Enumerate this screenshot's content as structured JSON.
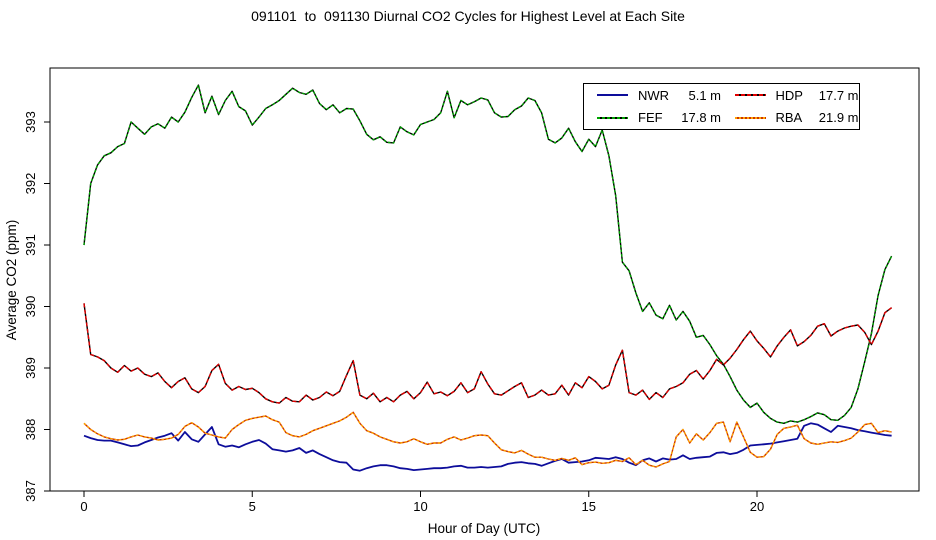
{
  "title": "091101  to  091130 Diurnal CO2 Cycles for Highest Level at Each Site",
  "chart_data": {
    "type": "line",
    "title": "091101  to  091130 Diurnal CO2 Cycles for Highest Level at Each Site",
    "xlabel": "Hour of Day (UTC)",
    "ylabel": "Average CO2 (ppm)",
    "x_ticks": [
      0,
      5,
      10,
      15,
      20
    ],
    "y_ticks": [
      387,
      388,
      389,
      390,
      391,
      392,
      393
    ],
    "xlim": [
      0,
      24
    ],
    "ylim": [
      387,
      393.9
    ],
    "grid": false,
    "legend_position": "top-right",
    "x_start": 0,
    "x_step": 0.2,
    "series": [
      {
        "name": "NWR",
        "label": "NWR",
        "height_label": "5.1 m",
        "color": "#0d0d9b",
        "base_color": "",
        "dash": "",
        "values": [
          387.9,
          387.86,
          387.83,
          387.82,
          387.82,
          387.79,
          387.76,
          387.73,
          387.74,
          387.79,
          387.83,
          387.87,
          387.9,
          387.94,
          387.82,
          387.96,
          387.84,
          387.8,
          387.92,
          388.04,
          387.76,
          387.72,
          387.74,
          387.71,
          387.76,
          387.8,
          387.83,
          387.77,
          387.68,
          387.66,
          387.64,
          387.66,
          387.7,
          387.62,
          387.66,
          387.6,
          387.55,
          387.5,
          387.47,
          387.46,
          387.35,
          387.33,
          387.37,
          387.4,
          387.42,
          387.42,
          387.4,
          387.37,
          387.36,
          387.34,
          387.35,
          387.36,
          387.37,
          387.37,
          387.38,
          387.4,
          387.41,
          387.38,
          387.38,
          387.39,
          387.38,
          387.39,
          387.4,
          387.44,
          387.46,
          387.47,
          387.45,
          387.44,
          387.41,
          387.45,
          387.49,
          387.52,
          387.46,
          387.47,
          387.48,
          387.5,
          387.54,
          387.53,
          387.52,
          387.55,
          387.52,
          387.46,
          387.42,
          387.5,
          387.53,
          387.48,
          387.53,
          387.51,
          387.52,
          387.58,
          387.52,
          387.54,
          387.55,
          387.56,
          387.62,
          387.63,
          387.6,
          387.62,
          387.67,
          387.74,
          387.75,
          387.76,
          387.77,
          387.79,
          387.81,
          387.83,
          387.85,
          388.06,
          388.1,
          388.08,
          388.02,
          387.96,
          388.06,
          388.04,
          388.02,
          387.99,
          387.97,
          387.95,
          387.93,
          387.91,
          387.9
        ]
      },
      {
        "name": "FEF",
        "label": "FEF",
        "height_label": "17.8 m",
        "color": "#00a300",
        "base_color": "#000000",
        "dash": "2.6,2",
        "values": [
          391.0,
          392.0,
          392.3,
          392.45,
          392.5,
          392.6,
          392.65,
          393.0,
          392.9,
          392.8,
          392.92,
          392.97,
          392.9,
          393.08,
          393.0,
          393.16,
          393.4,
          393.6,
          393.15,
          393.42,
          393.12,
          393.35,
          393.5,
          393.25,
          393.18,
          392.95,
          393.08,
          393.22,
          393.28,
          393.35,
          393.45,
          393.55,
          393.48,
          393.45,
          393.52,
          393.3,
          393.2,
          393.28,
          393.15,
          393.22,
          393.21,
          393.02,
          392.8,
          392.71,
          392.76,
          392.67,
          392.66,
          392.92,
          392.84,
          392.79,
          392.96,
          393.0,
          393.04,
          393.15,
          393.5,
          393.07,
          393.35,
          393.28,
          393.33,
          393.39,
          393.36,
          393.15,
          393.08,
          393.09,
          393.2,
          393.26,
          393.39,
          393.35,
          393.15,
          392.72,
          392.66,
          392.74,
          392.9,
          392.68,
          392.52,
          392.72,
          392.6,
          392.87,
          392.45,
          391.8,
          390.72,
          390.58,
          390.22,
          389.92,
          390.06,
          389.86,
          389.8,
          390.02,
          389.78,
          389.92,
          389.76,
          389.5,
          389.53,
          389.38,
          389.2,
          389.06,
          388.86,
          388.64,
          388.48,
          388.36,
          388.43,
          388.28,
          388.18,
          388.12,
          388.1,
          388.14,
          388.12,
          388.16,
          388.21,
          388.27,
          388.24,
          388.16,
          388.15,
          388.23,
          388.36,
          388.66,
          389.1,
          389.56,
          390.18,
          390.6,
          390.82
        ]
      },
      {
        "name": "HDP",
        "label": "HDP",
        "height_label": "17.7 m",
        "color": "#e00000",
        "base_color": "#000000",
        "dash": "4,2.4",
        "values": [
          390.05,
          389.22,
          389.18,
          389.12,
          389.0,
          388.93,
          389.04,
          388.95,
          389.0,
          388.9,
          388.86,
          388.92,
          388.78,
          388.68,
          388.78,
          388.84,
          388.66,
          388.6,
          388.7,
          388.96,
          389.06,
          388.75,
          388.64,
          388.7,
          388.65,
          388.67,
          388.6,
          388.5,
          388.45,
          388.43,
          388.52,
          388.46,
          388.45,
          388.56,
          388.48,
          388.52,
          388.61,
          388.55,
          388.62,
          388.88,
          389.12,
          388.56,
          388.5,
          388.59,
          388.45,
          388.52,
          388.45,
          388.56,
          388.62,
          388.5,
          388.6,
          388.77,
          388.58,
          388.61,
          388.55,
          388.62,
          388.76,
          388.6,
          388.66,
          388.94,
          388.74,
          388.58,
          388.56,
          388.63,
          388.7,
          388.76,
          388.52,
          388.56,
          388.64,
          388.56,
          388.58,
          388.72,
          388.56,
          388.76,
          388.68,
          388.86,
          388.78,
          388.66,
          388.72,
          389.05,
          389.29,
          388.6,
          388.56,
          388.64,
          388.49,
          388.6,
          388.52,
          388.66,
          388.7,
          388.76,
          388.9,
          388.96,
          388.82,
          388.96,
          389.14,
          389.05,
          389.16,
          389.3,
          389.46,
          389.6,
          389.44,
          389.32,
          389.18,
          389.36,
          389.5,
          389.62,
          389.36,
          389.43,
          389.53,
          389.68,
          389.72,
          389.52,
          389.6,
          389.65,
          389.68,
          389.7,
          389.58,
          389.38,
          389.6,
          389.9,
          389.98
        ]
      },
      {
        "name": "RBA",
        "label": "RBA",
        "height_label": "21.9 m",
        "color": "#ffa500",
        "base_color": "#cc3300",
        "dash": "2.4,2",
        "values": [
          388.1,
          388.0,
          387.93,
          387.88,
          387.85,
          387.83,
          387.84,
          387.88,
          387.91,
          387.88,
          387.86,
          387.83,
          387.84,
          387.86,
          387.92,
          388.05,
          388.11,
          388.04,
          387.94,
          387.91,
          387.88,
          387.86,
          388.0,
          388.08,
          388.15,
          388.18,
          388.2,
          388.22,
          388.16,
          388.12,
          387.95,
          387.9,
          387.88,
          387.92,
          387.98,
          388.02,
          388.06,
          388.1,
          388.14,
          388.2,
          388.28,
          388.1,
          387.98,
          387.94,
          387.88,
          387.84,
          387.8,
          387.78,
          387.8,
          387.85,
          387.8,
          387.76,
          387.78,
          387.78,
          387.84,
          387.88,
          387.83,
          387.86,
          387.9,
          387.91,
          387.9,
          387.78,
          387.67,
          387.64,
          387.62,
          387.66,
          387.6,
          387.55,
          387.55,
          387.52,
          387.5,
          387.53,
          387.5,
          387.54,
          387.43,
          387.46,
          387.47,
          387.45,
          387.46,
          387.5,
          387.48,
          387.54,
          387.43,
          387.5,
          387.42,
          387.39,
          387.44,
          387.48,
          387.88,
          388.0,
          387.78,
          387.93,
          387.83,
          387.95,
          388.1,
          388.12,
          387.8,
          388.12,
          387.88,
          387.63,
          387.55,
          387.56,
          387.68,
          387.92,
          388.02,
          388.04,
          388.07,
          387.85,
          387.78,
          387.76,
          387.78,
          387.8,
          387.79,
          387.82,
          387.86,
          387.96,
          388.08,
          388.1,
          387.95,
          387.98,
          387.96
        ]
      }
    ]
  }
}
